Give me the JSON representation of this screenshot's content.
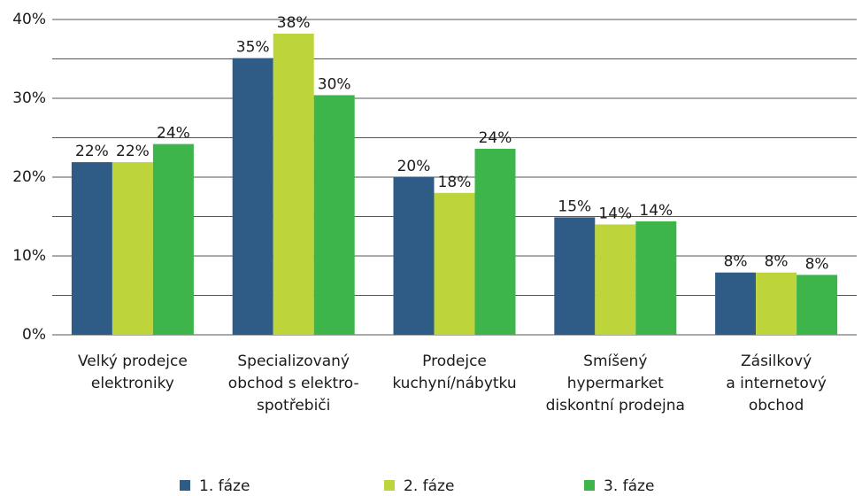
{
  "chart_data": {
    "type": "bar",
    "categories": [
      [
        "Velký prodejce",
        "elektroniky"
      ],
      [
        "Specializovaný",
        "obchod s elektro-",
        "spotřebiči"
      ],
      [
        "Prodejce",
        "kuchyní/nábytku"
      ],
      [
        "Smíšený",
        "hypermarket",
        "diskontní prodejna"
      ],
      [
        "Zásilkový",
        "a internetový",
        "obchod"
      ]
    ],
    "series": [
      {
        "name": "1. fáze",
        "color": "#2e5c87",
        "values": [
          21.9,
          35.1,
          20,
          14.9,
          7.9
        ],
        "value_labels": [
          "22%",
          "35%",
          "20%",
          "15%",
          "8%"
        ]
      },
      {
        "name": "2. fáze",
        "color": "#bdd53b",
        "values": [
          21.9,
          38.2,
          18,
          14.0,
          7.9
        ],
        "value_labels": [
          "22%",
          "38%",
          "18%",
          "14%",
          "8%"
        ]
      },
      {
        "name": "3. fáze",
        "color": "#3db54a",
        "values": [
          24.2,
          30.4,
          23.6,
          14.4,
          7.6
        ],
        "value_labels": [
          "24%",
          "30%",
          "24%",
          "14%",
          "8%"
        ]
      }
    ],
    "ylim": [
      0,
      40
    ],
    "yticks": [
      {
        "value": 0,
        "label": "0%"
      },
      {
        "value": 10,
        "label": "10%"
      },
      {
        "value": 20,
        "label": "20%"
      },
      {
        "value": 30,
        "label": "30%"
      },
      {
        "value": 40,
        "label": "40%"
      }
    ],
    "minor_gridlines": [
      5,
      15,
      25,
      35
    ],
    "grid": true,
    "legend": "bottom"
  }
}
